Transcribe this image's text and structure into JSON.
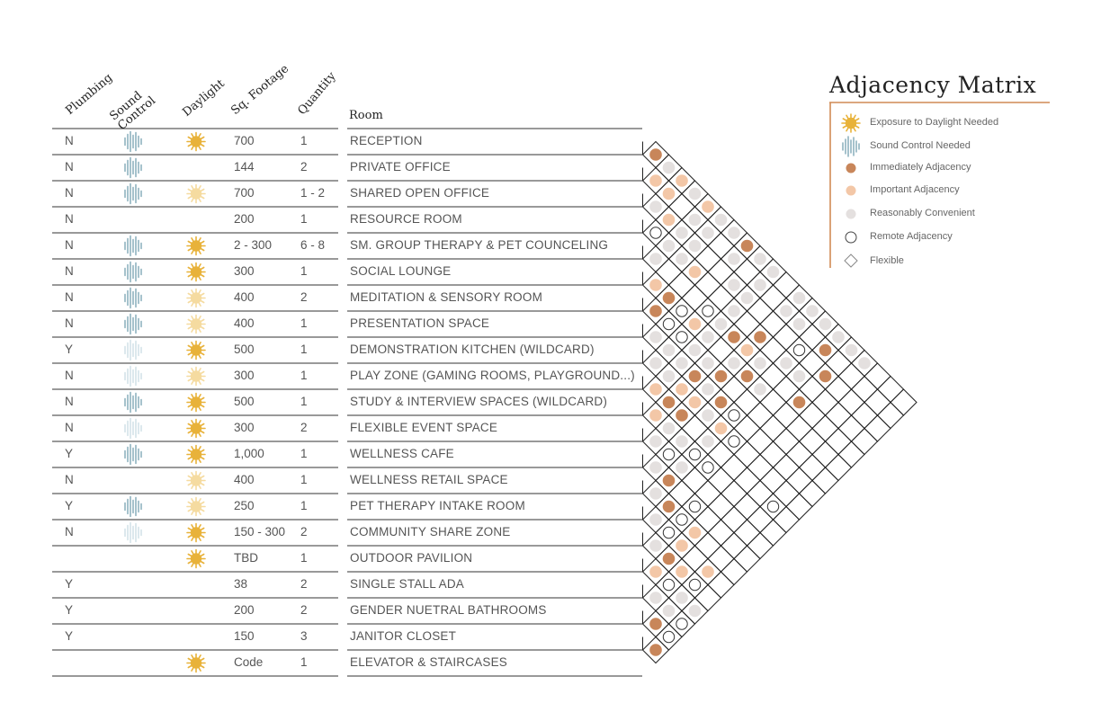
{
  "headers": {
    "plumbing": "Plumbing",
    "sound_control": "Sound Control",
    "daylight": "Daylight",
    "sq_footage": "Sq. Footage",
    "quantity": "Quantity",
    "room": "Room"
  },
  "rows": [
    {
      "plumbing": "N",
      "sound": "strong",
      "daylight": "strong",
      "sqft": "700",
      "qty": "1",
      "room": "RECEPTION"
    },
    {
      "plumbing": "N",
      "sound": "strong",
      "daylight": "none",
      "sqft": "144",
      "qty": "2",
      "room": "PRIVATE OFFICE"
    },
    {
      "plumbing": "N",
      "sound": "strong",
      "daylight": "faint",
      "sqft": "700",
      "qty": "1 - 2",
      "room": "SHARED OPEN OFFICE"
    },
    {
      "plumbing": "N",
      "sound": "none",
      "daylight": "none",
      "sqft": "200",
      "qty": "1",
      "room": "RESOURCE ROOM"
    },
    {
      "plumbing": "N",
      "sound": "strong",
      "daylight": "strong",
      "sqft": "2 - 300",
      "qty": "6 - 8",
      "room": "SM. GROUP THERAPY & PET COUNCELING"
    },
    {
      "plumbing": "N",
      "sound": "strong",
      "daylight": "strong",
      "sqft": "300",
      "qty": "1",
      "room": "SOCIAL LOUNGE"
    },
    {
      "plumbing": "N",
      "sound": "strong",
      "daylight": "faint",
      "sqft": "400",
      "qty": "2",
      "room": "MEDITATION & SENSORY ROOM"
    },
    {
      "plumbing": "N",
      "sound": "strong",
      "daylight": "faint",
      "sqft": "400",
      "qty": "1",
      "room": "PRESENTATION SPACE"
    },
    {
      "plumbing": "Y",
      "sound": "faint",
      "daylight": "strong",
      "sqft": "500",
      "qty": "1",
      "room": "DEMONSTRATION KITCHEN (WILDCARD)"
    },
    {
      "plumbing": "N",
      "sound": "faint",
      "daylight": "faint",
      "sqft": "300",
      "qty": "1",
      "room": "PLAY ZONE (GAMING ROOMS, PLAYGROUND...)"
    },
    {
      "plumbing": "N",
      "sound": "strong",
      "daylight": "strong",
      "sqft": "500",
      "qty": "1",
      "room": "STUDY & INTERVIEW SPACES (WILDCARD)"
    },
    {
      "plumbing": "N",
      "sound": "faint",
      "daylight": "strong",
      "sqft": "300",
      "qty": "2",
      "room": "FLEXIBLE EVENT SPACE"
    },
    {
      "plumbing": "Y",
      "sound": "strong",
      "daylight": "strong",
      "sqft": "1,000",
      "qty": "1",
      "room": "WELLNESS CAFE"
    },
    {
      "plumbing": "N",
      "sound": "none",
      "daylight": "faint",
      "sqft": "400",
      "qty": "1",
      "room": "WELLNESS RETAIL SPACE"
    },
    {
      "plumbing": "Y",
      "sound": "strong",
      "daylight": "faint",
      "sqft": "250",
      "qty": "1",
      "room": "PET THERAPY INTAKE ROOM"
    },
    {
      "plumbing": "N",
      "sound": "faint",
      "daylight": "strong",
      "sqft": "150 - 300",
      "qty": "2",
      "room": "COMMUNITY SHARE ZONE"
    },
    {
      "plumbing": "",
      "sound": "none",
      "daylight": "strong",
      "sqft": "TBD",
      "qty": "1",
      "room": "OUTDOOR PAVILION"
    },
    {
      "plumbing": "Y",
      "sound": "none",
      "daylight": "none",
      "sqft": "38",
      "qty": "2",
      "room": "SINGLE STALL ADA"
    },
    {
      "plumbing": "Y",
      "sound": "none",
      "daylight": "none",
      "sqft": "200",
      "qty": "2",
      "room": "GENDER NUETRAL BATHROOMS"
    },
    {
      "plumbing": "Y",
      "sound": "none",
      "daylight": "none",
      "sqft": "150",
      "qty": "3",
      "room": "JANITOR CLOSET"
    },
    {
      "plumbing": "",
      "sound": "none",
      "daylight": "strong",
      "sqft": "Code",
      "qty": "1",
      "room": "ELEVATOR & STAIRCASES"
    }
  ],
  "legend": {
    "title": "Adjacency Matrix",
    "items": [
      {
        "symbol": "sun-icon",
        "label": "Exposure to Daylight Needed"
      },
      {
        "symbol": "soundwave-icon",
        "label": "Sound Control Needed"
      },
      {
        "symbol": "dot-immediate",
        "label": "Immediately Adjacency"
      },
      {
        "symbol": "dot-important",
        "label": "Important Adjacency"
      },
      {
        "symbol": "dot-convenient",
        "label": "Reasonably Convenient"
      },
      {
        "symbol": "ring-remote",
        "label": "Remote Adjacency"
      },
      {
        "symbol": "diamond-flexible",
        "label": "Flexible"
      }
    ]
  },
  "colors": {
    "immediate": "#c8865a",
    "important": "#f3c7a7",
    "convenient": "#e4e0df",
    "remote": "#ffffff",
    "sun": "#e8b23a",
    "sun_faint": "#f5dba0",
    "sound": "#7fa8b6",
    "sound_faint": "#cddfe5",
    "legend_rule": "#d08a55",
    "grid": "#222222"
  },
  "matrix": {
    "encoding": "pairs [i,j] with i<j are room indices (0-based, in table order); unlisted pairs are Flexible",
    "immediate": [
      [
        0,
        1
      ],
      [
        0,
        8
      ],
      [
        1,
        15
      ],
      [
        2,
        16
      ],
      [
        3,
        12
      ],
      [
        4,
        11
      ],
      [
        4,
        16
      ],
      [
        5,
        7
      ],
      [
        5,
        13
      ],
      [
        6,
        7
      ],
      [
        6,
        12
      ],
      [
        7,
        11
      ],
      [
        7,
        13
      ],
      [
        9,
        11
      ],
      [
        9,
        12
      ],
      [
        12,
        14
      ],
      [
        13,
        15
      ],
      [
        15,
        17
      ],
      [
        18,
        19
      ],
      [
        19,
        20
      ]
    ],
    "important": [
      [
        0,
        3
      ],
      [
        0,
        5
      ],
      [
        1,
        2
      ],
      [
        1,
        3
      ],
      [
        2,
        4
      ],
      [
        3,
        7
      ],
      [
        4,
        12
      ],
      [
        5,
        6
      ],
      [
        5,
        9
      ],
      [
        8,
        11
      ],
      [
        8,
        12
      ],
      [
        8,
        14
      ],
      [
        9,
        10
      ],
      [
        10,
        11
      ],
      [
        13,
        17
      ],
      [
        14,
        17
      ],
      [
        14,
        19
      ],
      [
        15,
        18
      ],
      [
        16,
        17
      ]
    ],
    "convenient": [
      [
        0,
        2
      ],
      [
        0,
        4
      ],
      [
        0,
        6
      ],
      [
        0,
        7
      ],
      [
        0,
        9
      ],
      [
        0,
        10
      ],
      [
        0,
        12
      ],
      [
        0,
        13
      ],
      [
        0,
        14
      ],
      [
        0,
        15
      ],
      [
        0,
        16
      ],
      [
        0,
        17
      ],
      [
        1,
        5
      ],
      [
        1,
        6
      ],
      [
        1,
        8
      ],
      [
        1,
        10
      ],
      [
        1,
        12
      ],
      [
        1,
        13
      ],
      [
        2,
        3
      ],
      [
        2,
        5
      ],
      [
        2,
        6
      ],
      [
        2,
        9
      ],
      [
        2,
        10
      ],
      [
        3,
        5
      ],
      [
        3,
        6
      ],
      [
        3,
        10
      ],
      [
        3,
        14
      ],
      [
        3,
        15
      ],
      [
        4,
        5
      ],
      [
        4,
        10
      ],
      [
        4,
        13
      ],
      [
        5,
        10
      ],
      [
        5,
        12
      ],
      [
        5,
        14
      ],
      [
        6,
        9
      ],
      [
        6,
        10
      ],
      [
        6,
        11
      ],
      [
        7,
        8
      ],
      [
        7,
        9
      ],
      [
        7,
        10
      ],
      [
        7,
        12
      ],
      [
        8,
        9
      ],
      [
        8,
        10
      ],
      [
        8,
        13
      ],
      [
        9,
        14
      ],
      [
        10,
        12
      ],
      [
        10,
        13
      ],
      [
        11,
        12
      ],
      [
        11,
        14
      ],
      [
        12,
        13
      ],
      [
        13,
        14
      ],
      [
        14,
        15
      ],
      [
        15,
        16
      ],
      [
        16,
        19
      ],
      [
        16,
        20
      ],
      [
        17,
        18
      ],
      [
        17,
        19
      ]
    ],
    "remote": [
      [
        2,
        14
      ],
      [
        3,
        4
      ],
      [
        4,
        9
      ],
      [
        5,
        8
      ],
      [
        6,
        8
      ],
      [
        6,
        9
      ],
      [
        7,
        14
      ],
      [
        8,
        15
      ],
      [
        9,
        19
      ],
      [
        10,
        14
      ],
      [
        10,
        15
      ],
      [
        11,
        13
      ],
      [
        12,
        16
      ],
      [
        13,
        16
      ],
      [
        14,
        16
      ],
      [
        15,
        19
      ],
      [
        16,
        18
      ],
      [
        17,
        20
      ],
      [
        18,
        20
      ]
    ]
  }
}
